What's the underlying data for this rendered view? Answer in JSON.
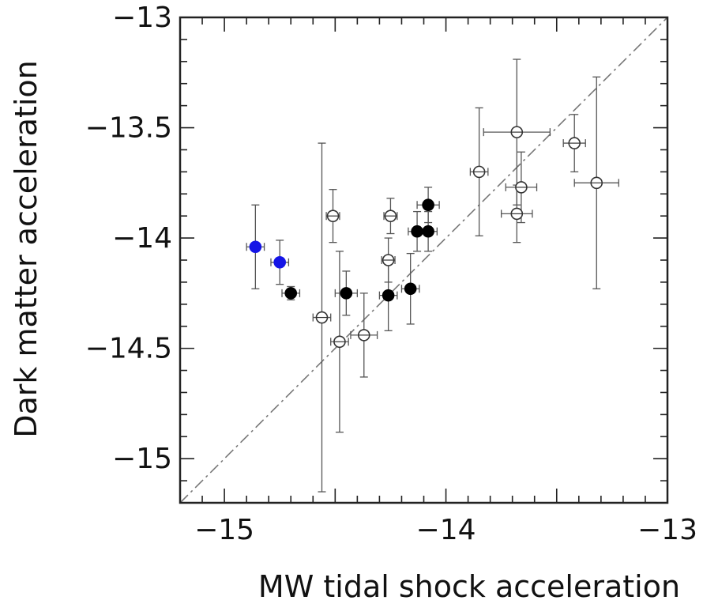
{
  "chart_data": {
    "type": "scatter",
    "title": "",
    "xlabel": "MW tidal shock acceleration",
    "ylabel": "Dark matter acceleration",
    "xlim": [
      -15.2,
      -13.0
    ],
    "ylim": [
      -15.2,
      -13.0
    ],
    "xticks": [
      -15,
      -14,
      -13
    ],
    "yticks": [
      -15,
      -14.5,
      -14,
      -13.5,
      -13
    ],
    "xtick_labels": [
      "−15",
      "−14",
      "−13"
    ],
    "ytick_labels": [
      "−15",
      "−14.5",
      "−14",
      "−13.5",
      "−13"
    ],
    "grid": false,
    "legend": "none",
    "reference_line": {
      "style": "dash-dot",
      "from": [
        -15.2,
        -15.2
      ],
      "to": [
        -13.0,
        -13.0
      ]
    },
    "colors": {
      "blue_marker": "#1515e6",
      "filled_marker": "#000000",
      "error_bar": "#555555",
      "axis": "#222222"
    },
    "series": [
      {
        "marker": "filled-blue",
        "points": [
          {
            "x": -14.86,
            "y": -14.04,
            "xerr": 0.04,
            "yerr_minus": 0.19,
            "yerr_plus": 0.19
          },
          {
            "x": -14.75,
            "y": -14.11,
            "xerr": 0.04,
            "yerr_minus": 0.1,
            "yerr_plus": 0.1
          }
        ]
      },
      {
        "marker": "filled-black",
        "points": [
          {
            "x": -14.7,
            "y": -14.25,
            "xerr": 0.04,
            "yerr_minus": 0.03,
            "yerr_plus": 0.03
          },
          {
            "x": -14.45,
            "y": -14.25,
            "xerr": 0.05,
            "yerr_minus": 0.1,
            "yerr_plus": 0.1
          },
          {
            "x": -14.26,
            "y": -14.26,
            "xerr": 0.04,
            "yerr_minus": 0.16,
            "yerr_plus": 0.16
          },
          {
            "x": -14.16,
            "y": -14.23,
            "xerr": 0.04,
            "yerr_minus": 0.16,
            "yerr_plus": 0.16
          },
          {
            "x": -14.13,
            "y": -13.97,
            "xerr": 0.04,
            "yerr_minus": 0.09,
            "yerr_plus": 0.09
          },
          {
            "x": -14.08,
            "y": -13.97,
            "xerr": 0.04,
            "yerr_minus": 0.09,
            "yerr_plus": 0.09
          },
          {
            "x": -14.08,
            "y": -13.85,
            "xerr": 0.05,
            "yerr_minus": 0.08,
            "yerr_plus": 0.08
          }
        ]
      },
      {
        "marker": "open",
        "points": [
          {
            "x": -14.56,
            "y": -14.36,
            "xerr": 0.04,
            "yerr_minus": 0.79,
            "yerr_plus": 0.79
          },
          {
            "x": -14.51,
            "y": -13.9,
            "xerr": 0.03,
            "yerr_minus": 0.12,
            "yerr_plus": 0.12
          },
          {
            "x": -14.48,
            "y": -14.47,
            "xerr": 0.04,
            "yerr_minus": 0.41,
            "yerr_plus": 0.41
          },
          {
            "x": -14.37,
            "y": -14.44,
            "xerr": 0.06,
            "yerr_minus": 0.19,
            "yerr_plus": 0.19
          },
          {
            "x": -14.26,
            "y": -14.1,
            "xerr": 0.03,
            "yerr_minus": 0.1,
            "yerr_plus": 0.1
          },
          {
            "x": -14.25,
            "y": -13.9,
            "xerr": 0.03,
            "yerr_minus": 0.08,
            "yerr_plus": 0.08
          },
          {
            "x": -13.85,
            "y": -13.7,
            "xerr": 0.04,
            "yerr_minus": 0.29,
            "yerr_plus": 0.29
          },
          {
            "x": -13.68,
            "y": -13.52,
            "xerr": 0.15,
            "yerr_minus": 0.33,
            "yerr_plus": 0.33
          },
          {
            "x": -13.66,
            "y": -13.77,
            "xerr": 0.07,
            "yerr_minus": 0.16,
            "yerr_plus": 0.16
          },
          {
            "x": -13.68,
            "y": -13.89,
            "xerr": 0.07,
            "yerr_minus": 0.13,
            "yerr_plus": 0.13
          },
          {
            "x": -13.42,
            "y": -13.57,
            "xerr": 0.05,
            "yerr_minus": 0.13,
            "yerr_plus": 0.13
          },
          {
            "x": -13.32,
            "y": -13.75,
            "xerr": 0.1,
            "yerr_minus": 0.48,
            "yerr_plus": 0.48
          }
        ]
      }
    ]
  }
}
